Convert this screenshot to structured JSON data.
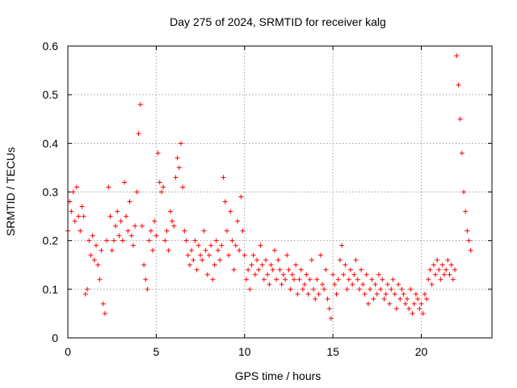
{
  "chart_data": {
    "type": "scatter",
    "title": "Day 275 of 2024, SRMTID for receiver kalg",
    "xlabel": "GPS time / hours",
    "ylabel": "SRMTID / TECUs",
    "xlim": [
      0,
      24
    ],
    "ylim": [
      0,
      0.6
    ],
    "x_ticks": [
      0,
      5,
      10,
      15,
      20
    ],
    "x_tick_labels": [
      "0",
      "5",
      "10",
      "15",
      "20"
    ],
    "y_ticks": [
      0,
      0.1,
      0.2,
      0.3,
      0.4,
      0.5,
      0.6
    ],
    "y_tick_labels": [
      "0",
      "0.1",
      "0.2",
      "0.3",
      "0.4",
      "0.5",
      "0.6"
    ],
    "grid": true,
    "legend": "none",
    "marker": "+",
    "series": [
      {
        "name": "SRMTID",
        "color": "#ff0000",
        "x": [
          0.0,
          0.1,
          0.2,
          0.3,
          0.4,
          0.5,
          0.6,
          0.7,
          0.8,
          0.9,
          1.0,
          1.1,
          1.2,
          1.3,
          1.4,
          1.5,
          1.6,
          1.7,
          1.8,
          1.9,
          2.0,
          2.1,
          2.2,
          2.3,
          2.4,
          2.5,
          2.6,
          2.7,
          2.8,
          2.9,
          3.0,
          3.1,
          3.2,
          3.3,
          3.4,
          3.5,
          3.6,
          3.7,
          3.8,
          3.9,
          4.0,
          4.1,
          4.2,
          4.3,
          4.4,
          4.5,
          4.6,
          4.7,
          4.8,
          4.9,
          5.0,
          5.1,
          5.2,
          5.3,
          5.4,
          5.5,
          5.6,
          5.7,
          5.8,
          5.9,
          6.0,
          6.1,
          6.2,
          6.3,
          6.4,
          6.5,
          6.6,
          6.7,
          6.8,
          6.9,
          7.0,
          7.1,
          7.2,
          7.3,
          7.4,
          7.5,
          7.6,
          7.7,
          7.8,
          7.9,
          8.0,
          8.1,
          8.2,
          8.3,
          8.4,
          8.5,
          8.6,
          8.7,
          8.8,
          8.9,
          9.0,
          9.1,
          9.2,
          9.3,
          9.4,
          9.5,
          9.6,
          9.7,
          9.8,
          9.9,
          10.0,
          10.1,
          10.2,
          10.3,
          10.4,
          10.5,
          10.6,
          10.7,
          10.8,
          10.9,
          11.0,
          11.1,
          11.2,
          11.3,
          11.4,
          11.5,
          11.6,
          11.7,
          11.8,
          11.9,
          12.0,
          12.1,
          12.2,
          12.3,
          12.4,
          12.5,
          12.6,
          12.7,
          12.8,
          12.9,
          13.0,
          13.1,
          13.2,
          13.3,
          13.4,
          13.5,
          13.6,
          13.7,
          13.8,
          13.9,
          14.0,
          14.1,
          14.2,
          14.3,
          14.4,
          14.5,
          14.6,
          14.7,
          14.8,
          14.9,
          15.0,
          15.1,
          15.2,
          15.3,
          15.4,
          15.5,
          15.6,
          15.7,
          15.8,
          15.9,
          16.0,
          16.1,
          16.2,
          16.3,
          16.4,
          16.5,
          16.6,
          16.7,
          16.8,
          16.9,
          17.0,
          17.1,
          17.2,
          17.3,
          17.4,
          17.5,
          17.6,
          17.7,
          17.8,
          17.9,
          18.0,
          18.1,
          18.2,
          18.3,
          18.4,
          18.5,
          18.6,
          18.7,
          18.8,
          18.9,
          19.0,
          19.1,
          19.2,
          19.3,
          19.4,
          19.5,
          19.6,
          19.7,
          19.8,
          19.9,
          20.0,
          20.1,
          20.2,
          20.3,
          20.4,
          20.5,
          20.6,
          20.7,
          20.8,
          20.9,
          21.0,
          21.1,
          21.2,
          21.3,
          21.4,
          21.5,
          21.6,
          21.7,
          21.8,
          21.9,
          22.0,
          22.1,
          22.2,
          22.3,
          22.4,
          22.5,
          22.6,
          22.7,
          22.8
        ],
        "y": [
          0.22,
          0.28,
          0.26,
          0.3,
          0.24,
          0.31,
          0.25,
          0.22,
          0.27,
          0.25,
          0.09,
          0.1,
          0.2,
          0.17,
          0.21,
          0.16,
          0.19,
          0.15,
          0.12,
          0.18,
          0.07,
          0.05,
          0.2,
          0.31,
          0.25,
          0.18,
          0.2,
          0.23,
          0.26,
          0.21,
          0.24,
          0.2,
          0.32,
          0.25,
          0.22,
          0.28,
          0.21,
          0.19,
          0.23,
          0.3,
          0.42,
          0.48,
          0.23,
          0.15,
          0.12,
          0.1,
          0.2,
          0.22,
          0.18,
          0.24,
          0.21,
          0.38,
          0.32,
          0.3,
          0.31,
          0.2,
          0.22,
          0.18,
          0.26,
          0.24,
          0.23,
          0.33,
          0.37,
          0.35,
          0.4,
          0.31,
          0.22,
          0.2,
          0.17,
          0.15,
          0.18,
          0.16,
          0.2,
          0.14,
          0.19,
          0.17,
          0.16,
          0.22,
          0.18,
          0.13,
          0.17,
          0.19,
          0.12,
          0.15,
          0.2,
          0.18,
          0.16,
          0.19,
          0.33,
          0.28,
          0.22,
          0.17,
          0.26,
          0.2,
          0.14,
          0.19,
          0.24,
          0.18,
          0.29,
          0.22,
          0.17,
          0.12,
          0.14,
          0.1,
          0.15,
          0.17,
          0.13,
          0.16,
          0.14,
          0.19,
          0.15,
          0.12,
          0.16,
          0.13,
          0.11,
          0.15,
          0.14,
          0.18,
          0.12,
          0.16,
          0.14,
          0.11,
          0.13,
          0.12,
          0.17,
          0.14,
          0.1,
          0.13,
          0.12,
          0.15,
          0.09,
          0.12,
          0.14,
          0.1,
          0.11,
          0.13,
          0.09,
          0.12,
          0.16,
          0.1,
          0.08,
          0.12,
          0.09,
          0.17,
          0.11,
          0.1,
          0.14,
          0.08,
          0.06,
          0.04,
          0.13,
          0.11,
          0.09,
          0.12,
          0.16,
          0.19,
          0.13,
          0.15,
          0.1,
          0.12,
          0.14,
          0.11,
          0.13,
          0.16,
          0.12,
          0.1,
          0.14,
          0.11,
          0.09,
          0.13,
          0.07,
          0.1,
          0.12,
          0.08,
          0.11,
          0.09,
          0.13,
          0.1,
          0.12,
          0.08,
          0.09,
          0.11,
          0.07,
          0.1,
          0.12,
          0.09,
          0.06,
          0.11,
          0.08,
          0.1,
          0.09,
          0.07,
          0.08,
          0.06,
          0.1,
          0.05,
          0.07,
          0.09,
          0.08,
          0.06,
          0.07,
          0.05,
          0.09,
          0.08,
          0.12,
          0.14,
          0.11,
          0.15,
          0.13,
          0.16,
          0.14,
          0.12,
          0.15,
          0.13,
          0.14,
          0.16,
          0.13,
          0.15,
          0.12,
          0.14,
          0.58,
          0.52,
          0.45,
          0.38,
          0.3,
          0.26,
          0.22,
          0.2,
          0.18
        ]
      }
    ]
  }
}
